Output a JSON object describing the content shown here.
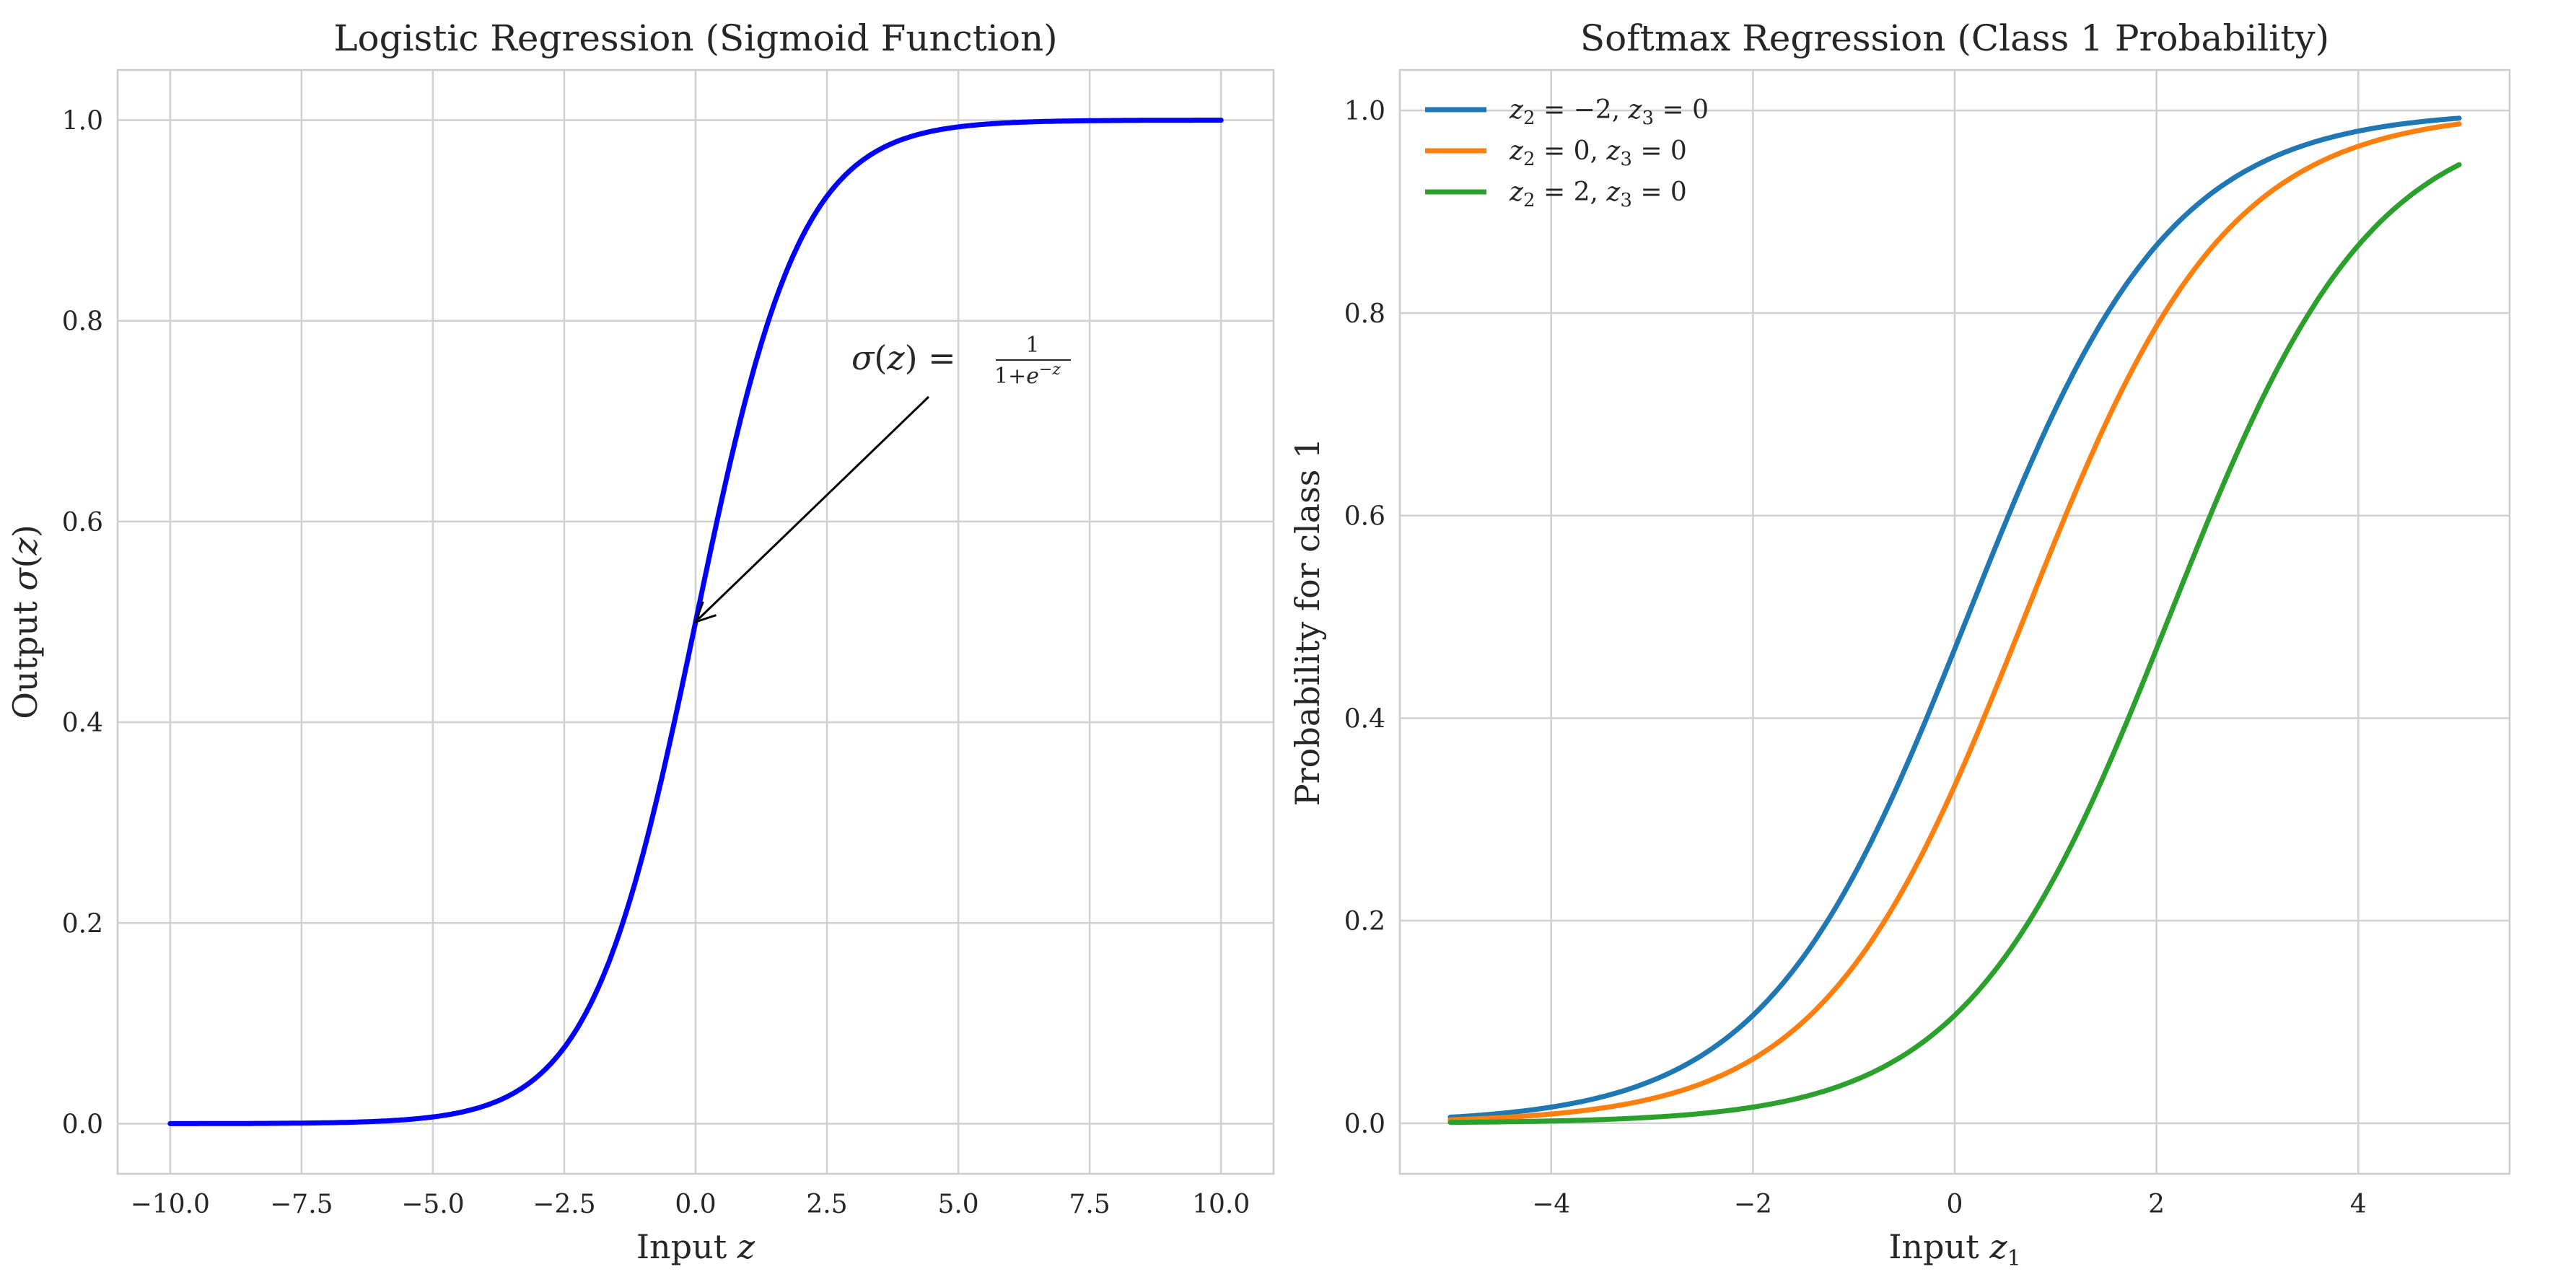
{
  "chart_data": [
    {
      "type": "line",
      "title": "Logistic Regression (Sigmoid Function)",
      "xlabel": "Input z",
      "ylabel": "Output σ(z)",
      "xlim": [
        -11,
        11
      ],
      "ylim": [
        -0.05,
        1.05
      ],
      "xticks": [
        "−10.0",
        "−7.5",
        "−5.0",
        "−2.5",
        "0.0",
        "2.5",
        "5.0",
        "7.5",
        "10.0"
      ],
      "yticks": [
        "0.0",
        "0.2",
        "0.4",
        "0.6",
        "0.8",
        "1.0"
      ],
      "grid": true,
      "function": "sigmoid",
      "x_range": [
        -10,
        10
      ],
      "series": [
        {
          "color": "#0000ff",
          "x": [
            -10,
            -8,
            -6,
            -5,
            -4,
            -3,
            -2.5,
            -2,
            -1.5,
            -1,
            -0.5,
            0,
            0.5,
            1,
            1.5,
            2,
            2.5,
            3,
            4,
            5,
            6,
            8,
            10
          ],
          "values": [
            0.0,
            0.0003,
            0.0025,
            0.0067,
            0.018,
            0.0474,
            0.0759,
            0.1192,
            0.1824,
            0.2689,
            0.3775,
            0.5,
            0.6225,
            0.7311,
            0.8176,
            0.8808,
            0.9241,
            0.9526,
            0.982,
            0.9933,
            0.9975,
            0.9997,
            1.0
          ]
        }
      ],
      "annotation": {
        "lhs": "σ(z) =",
        "numerator": "1",
        "denominator": "1+e",
        "denominator_exp": "−z",
        "points_to": [
          0,
          0.5
        ],
        "text_at": [
          3.0,
          0.75
        ]
      }
    },
    {
      "type": "line",
      "title": "Softmax Regression (Class 1 Probability)",
      "xlabel": "Input z",
      "xlabel_sub": "1",
      "ylabel": "Probability for class 1",
      "xlim": [
        -5.5,
        5.5
      ],
      "ylim": [
        -0.05,
        1.04
      ],
      "xticks": [
        "−4",
        "−2",
        "0",
        "2",
        "4"
      ],
      "yticks": [
        "0.0",
        "0.2",
        "0.4",
        "0.6",
        "0.8",
        "1.0"
      ],
      "grid": true,
      "legend_position": "top-left",
      "function": "softmax",
      "x_range": [
        -5,
        5
      ],
      "series": [
        {
          "legend": "z2 = −2, z3 = 0",
          "z2": -2,
          "z3": 0,
          "color": "#1f77b4",
          "x": [
            -5,
            -4,
            -3,
            -2,
            -1,
            0,
            1,
            2,
            3,
            4,
            5
          ],
          "values": [
            0.0066,
            0.0177,
            0.0453,
            0.1065,
            0.2119,
            0.4683,
            0.7046,
            0.8668,
            0.946,
            0.9795,
            0.9924
          ]
        },
        {
          "legend": "z2 = 0, z3 = 0",
          "z2": 0,
          "z3": 0,
          "color": "#ff7f0e",
          "x": [
            -5,
            -4,
            -3,
            -2,
            -1,
            0,
            1,
            2,
            3,
            4,
            5
          ],
          "values": [
            0.0034,
            0.0091,
            0.0243,
            0.0634,
            0.1554,
            0.3333,
            0.5761,
            0.787,
            0.9094,
            0.9647,
            0.9866
          ]
        },
        {
          "legend": "z2 = 2, z3 = 0",
          "z2": 2,
          "z3": 0,
          "color": "#2ca02c",
          "x": [
            -5,
            -4,
            -3,
            -2,
            -1,
            0,
            1,
            2,
            3,
            4,
            5
          ],
          "values": [
            0.0008,
            0.0022,
            0.0058,
            0.0156,
            0.0416,
            0.1065,
            0.2442,
            0.4683,
            0.7046,
            0.8668,
            0.946
          ]
        }
      ]
    }
  ]
}
